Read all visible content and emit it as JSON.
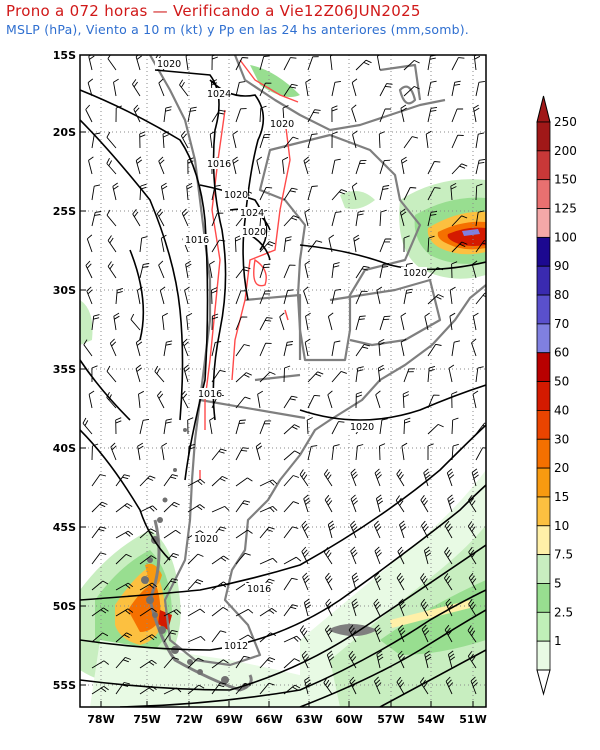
{
  "title": "Prono a 072 horas — Verificando a Vie12Z06JUN2025",
  "subtitle": "MSLP (hPa), Viento a 10 m (kt) y Pp en las 24 hs anteriores (mm,somb).",
  "lat_labels": [
    "15S",
    "20S",
    "25S",
    "30S",
    "35S",
    "40S",
    "45S",
    "50S",
    "55S"
  ],
  "lon_labels": [
    "78W",
    "75W",
    "72W",
    "69W",
    "66W",
    "63W",
    "60W",
    "57W",
    "54W",
    "51W"
  ],
  "isobar_labels": [
    "1020",
    "1024",
    "1020",
    "1016",
    "1020",
    "1024",
    "1020",
    "1016",
    "1020",
    "1016",
    "1020",
    "1020",
    "1016",
    "1012"
  ],
  "colorbar": {
    "levels": [
      "250",
      "200",
      "150",
      "125",
      "100",
      "90",
      "80",
      "70",
      "60",
      "50",
      "40",
      "30",
      "20",
      "15",
      "10",
      "7.5",
      "5",
      "2.5",
      "1"
    ],
    "colors": [
      "#a01818",
      "#c83838",
      "#e87070",
      "#f4a8a8",
      "#1c0890",
      "#3a2ab0",
      "#5a50cc",
      "#8080e0",
      "#b80000",
      "#d41a00",
      "#ea4400",
      "#f57000",
      "#f89a10",
      "#fcc040",
      "#fff0a8",
      "#c8eec0",
      "#98de90",
      "#c0f0b8",
      "#e8fae4"
    ]
  },
  "colors": {
    "title": "#d01818",
    "subtitle": "#2f6fd0",
    "coast": "#808080",
    "isobar": "#000000",
    "terrain": "#ff4444"
  }
}
